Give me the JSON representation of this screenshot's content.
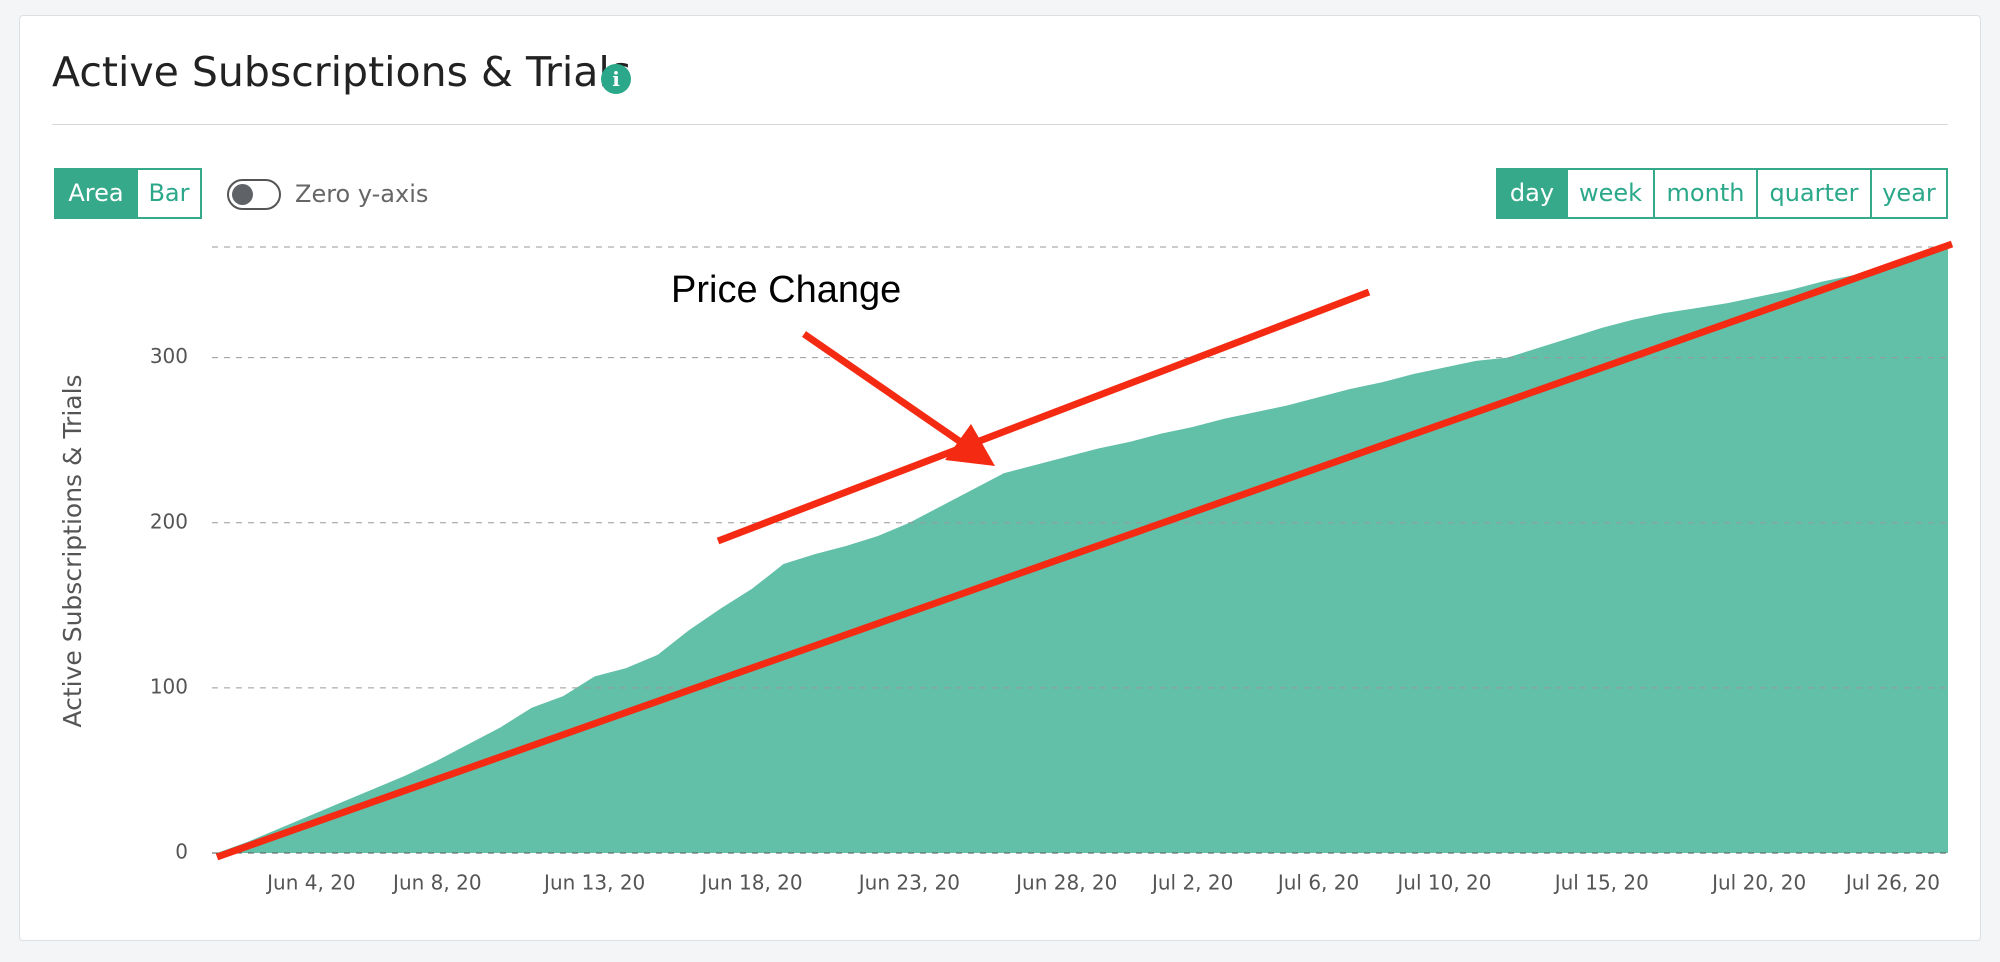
{
  "header": {
    "title": "Active Subscriptions & Trials"
  },
  "controls": {
    "chart_types": [
      "Area",
      "Bar"
    ],
    "zero_axis_label": "Zero y-axis",
    "periods": [
      "day",
      "week",
      "month",
      "quarter",
      "year"
    ]
  },
  "chart_data": {
    "type": "area",
    "y_label": "Active Subscriptions & Trials",
    "annotation": "Price Change",
    "categories": [
      null,
      null,
      null,
      "Jun 4, 20",
      null,
      null,
      null,
      "Jun 8, 20",
      null,
      null,
      null,
      null,
      "Jun 13, 20",
      null,
      null,
      null,
      null,
      "Jun 18, 20",
      null,
      null,
      null,
      null,
      "Jun 23, 20",
      null,
      null,
      null,
      null,
      "Jun 28, 20",
      null,
      null,
      null,
      "Jul 2, 20",
      null,
      null,
      null,
      "Jul 6, 20",
      null,
      null,
      null,
      "Jul 10, 20",
      null,
      null,
      null,
      null,
      "Jul 15, 20",
      null,
      null,
      null,
      null,
      "Jul 20, 20",
      null,
      null,
      null,
      null,
      null,
      "Jul 26, 20"
    ],
    "values": [
      0,
      7,
      15,
      23,
      31,
      39,
      47,
      56,
      66,
      76,
      88,
      95,
      107,
      112,
      120,
      135,
      148,
      160,
      175,
      181,
      186,
      192,
      200,
      210,
      220,
      230,
      235,
      240,
      245,
      249,
      254,
      258,
      263,
      267,
      271,
      276,
      281,
      285,
      290,
      294,
      298,
      300,
      306,
      312,
      318,
      323,
      327,
      330,
      333,
      337,
      341,
      346,
      350,
      355,
      360,
      366
    ],
    "color": "#62bfa8",
    "ylim": [
      0,
      367
    ],
    "yticks": [
      0,
      100,
      200,
      300
    ],
    "grid": true
  }
}
